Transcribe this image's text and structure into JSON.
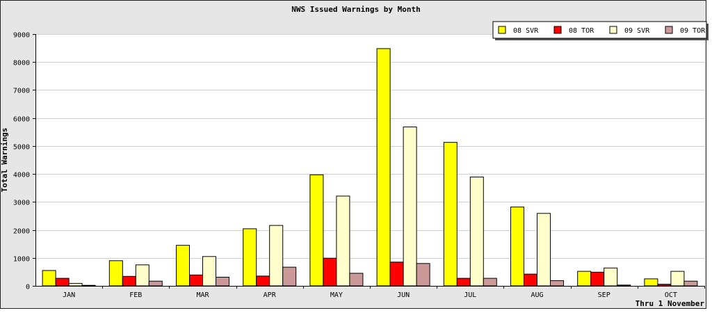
{
  "chart_data": {
    "type": "bar",
    "title": "NWS Issued Warnings by Month",
    "ylabel": "Total Warnings",
    "xlabel": "",
    "note": "Thru 1 November",
    "ylim": [
      0,
      9000
    ],
    "ytick_step": 1000,
    "grid": true,
    "legend_position": "top-right",
    "categories": [
      "JAN",
      "FEB",
      "MAR",
      "APR",
      "MAY",
      "JUN",
      "JUL",
      "AUG",
      "SEP",
      "OCT"
    ],
    "series": [
      {
        "name": "08 SVR",
        "color": "#ffff00",
        "values": [
          550,
          900,
          1450,
          2040,
          3970,
          8480,
          5130,
          2820,
          520,
          250
        ]
      },
      {
        "name": "08 TOR",
        "color": "#ff0000",
        "values": [
          270,
          340,
          390,
          350,
          990,
          850,
          270,
          420,
          490,
          60
        ]
      },
      {
        "name": "09 SVR",
        "color": "#ffffcc",
        "values": [
          90,
          750,
          1050,
          2160,
          3210,
          5680,
          3890,
          2590,
          640,
          520
        ]
      },
      {
        "name": "09 TOR",
        "color": "#cc9999",
        "values": [
          20,
          170,
          310,
          670,
          450,
          800,
          270,
          190,
          30,
          170
        ]
      }
    ]
  }
}
